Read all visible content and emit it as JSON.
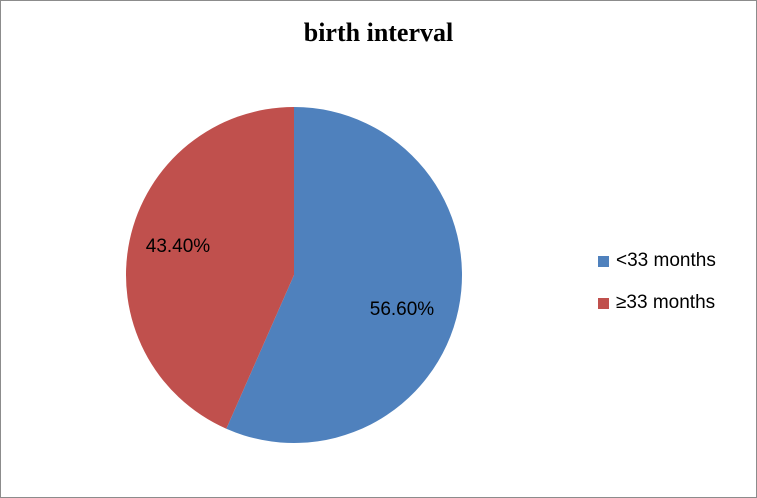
{
  "chart_data": {
    "type": "pie",
    "title": "birth interval",
    "categories": [
      "<33 months",
      "≥33 months"
    ],
    "values": [
      56.6,
      43.4
    ],
    "data_labels": [
      "56.60%",
      "43.40%"
    ],
    "colors": [
      "#4f81bd",
      "#c0504d"
    ],
    "legend_position": "right"
  }
}
